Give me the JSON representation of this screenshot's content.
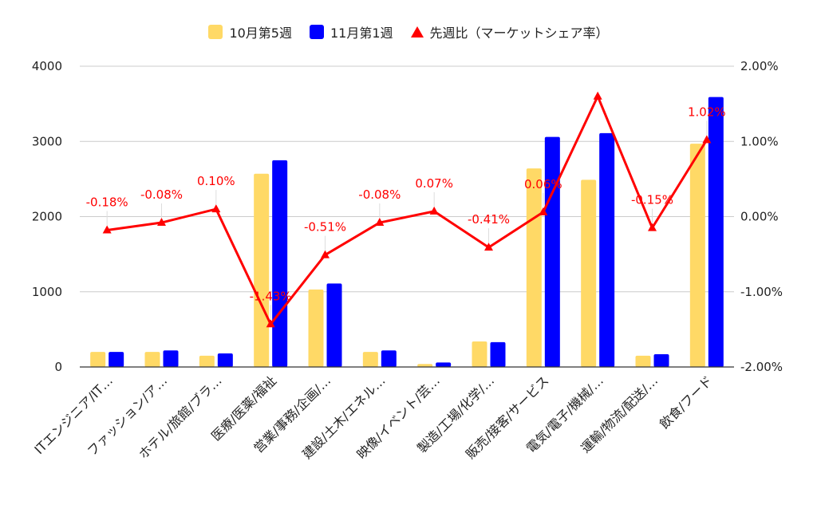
{
  "legend": {
    "items": [
      {
        "label": "10月第5週",
        "color": "#FFD966",
        "shape": "square"
      },
      {
        "label": "11月第1週",
        "color": "#0000FF",
        "shape": "square"
      },
      {
        "label": "先週比（マーケットシェア率）",
        "color": "#FF0000",
        "shape": "triangle"
      }
    ]
  },
  "chart_data": {
    "type": "bar",
    "categories": [
      "ITエンジニア/IT…",
      "ファッション/ア…",
      "ホテル/旅館/ブラ…",
      "医療/医薬/福祉",
      "営業/事務/企画/…",
      "建設/土木/エネル…",
      "映像/イベント/芸…",
      "製造/工場/化学/…",
      "販売/接客/サービス",
      "電気/電子/機械/…",
      "運輸/物流/配送/…",
      "飲食/フード"
    ],
    "series": [
      {
        "name": "10月第5週",
        "axis": "left",
        "kind": "bar",
        "color": "#FFD966",
        "values": [
          200,
          200,
          150,
          2570,
          1030,
          200,
          40,
          340,
          2640,
          2490,
          150,
          2970
        ]
      },
      {
        "name": "11月第1週",
        "axis": "left",
        "kind": "bar",
        "color": "#0000FF",
        "values": [
          200,
          220,
          180,
          2750,
          1110,
          220,
          60,
          330,
          3060,
          3110,
          170,
          3590
        ]
      },
      {
        "name": "先週比（マーケットシェア率）",
        "axis": "right",
        "kind": "line",
        "color": "#FF0000",
        "values": [
          -0.18,
          -0.08,
          0.1,
          -1.43,
          -0.51,
          -0.08,
          0.07,
          -0.41,
          0.06,
          1.6,
          -0.15,
          1.02
        ],
        "labels": [
          "-0.18%",
          "-0.08%",
          "0.10%",
          "-1.43%",
          "-0.51%",
          "-0.08%",
          "0.07%",
          "-0.41%",
          "0.06%",
          "",
          "-0.15%",
          "1.02%"
        ]
      }
    ],
    "ylim": [
      0,
      4000
    ],
    "yticks": [
      "0",
      "1000",
      "2000",
      "3000",
      "4000"
    ],
    "y2lim": [
      -2.0,
      2.0
    ],
    "y2ticks": [
      "-2.00%",
      "-1.00%",
      "0.00%",
      "1.00%",
      "2.00%"
    ],
    "grid": true,
    "legend_position": "top"
  }
}
